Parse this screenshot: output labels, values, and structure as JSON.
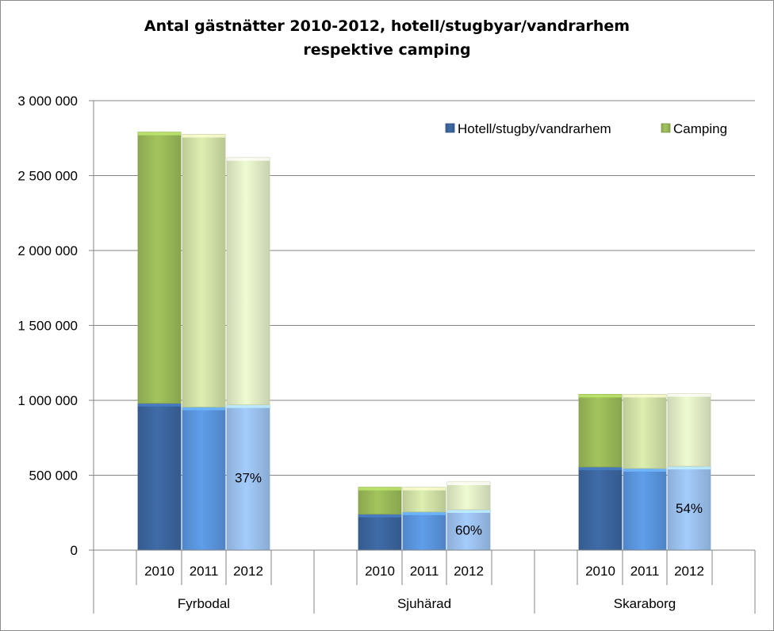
{
  "chart_data": {
    "type": "bar",
    "stacked": true,
    "title_line1": "Antal gästnätter 2010-2012, hotell/stugbyar/vandrarhem",
    "title_line2": "respektive camping",
    "ylim": [
      0,
      3000000
    ],
    "yticks": [
      "0",
      "500 000",
      "1 000 000",
      "1 500 000",
      "2 000 000",
      "2 500 000",
      "3 000 000"
    ],
    "ytick_values": [
      0,
      500000,
      1000000,
      1500000,
      2000000,
      2500000,
      3000000
    ],
    "grid": true,
    "legend_placement": "top-right",
    "groups": [
      "Fyrbodal",
      "Sjuhärad",
      "Skaraborg"
    ],
    "years": [
      "2010",
      "2011",
      "2012"
    ],
    "series": [
      {
        "name": "Hotell/stugby/vandrarhem",
        "colors": [
          "#3c66a0",
          "#5a96e0",
          "#9cc2f0"
        ],
        "values": [
          [
            980000,
            955000,
            970000
          ],
          [
            240000,
            255000,
            270000
          ],
          [
            555000,
            545000,
            560000
          ]
        ]
      },
      {
        "name": "Camping",
        "colors": [
          "#9bbb59",
          "#d2e3a8",
          "#e4efc8"
        ],
        "values": [
          [
            1810000,
            1820000,
            1650000
          ],
          [
            180000,
            165000,
            185000
          ],
          [
            485000,
            495000,
            485000
          ]
        ]
      }
    ],
    "annotations": [
      {
        "group": 0,
        "bar": 2,
        "text": "37%"
      },
      {
        "group": 1,
        "bar": 2,
        "text": "60%"
      },
      {
        "group": 2,
        "bar": 2,
        "text": "54%"
      }
    ]
  }
}
